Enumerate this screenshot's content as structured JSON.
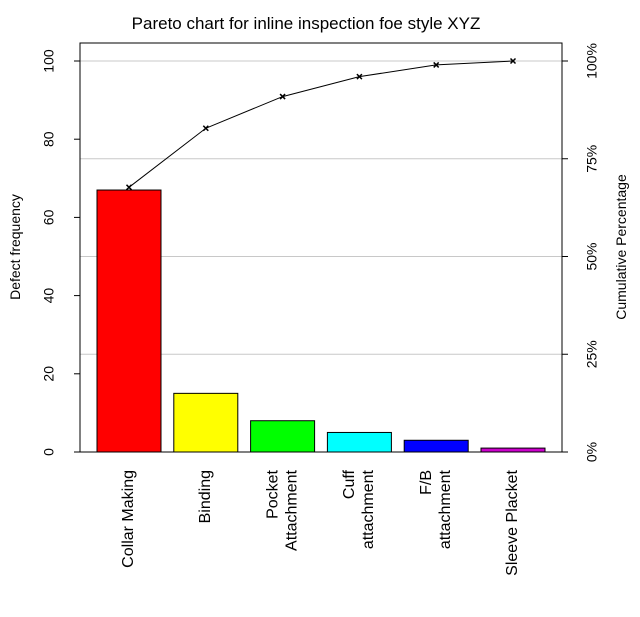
{
  "chart_data": {
    "type": "bar",
    "title": "Pareto chart for inline inspection foe style XYZ",
    "xlabel": "",
    "ylabel": "Defect frequency",
    "ylabel_right": "Cumulative Percentage",
    "ylim": [
      0,
      100
    ],
    "yticks": [
      0,
      20,
      40,
      60,
      80,
      100
    ],
    "y2ticks": [
      "0%",
      "25%",
      "50%",
      "75%",
      "100%"
    ],
    "categories": [
      [
        "Collar Making"
      ],
      [
        "Binding"
      ],
      [
        "Pocket",
        "Attachment"
      ],
      [
        "Cuff",
        "attachment"
      ],
      [
        "F/B",
        "attachment"
      ],
      [
        "Sleeve Placket"
      ]
    ],
    "values": [
      67,
      15,
      8,
      5,
      3,
      1
    ],
    "bar_colors": [
      "#ff0000",
      "#ffff00",
      "#00ff00",
      "#00ffff",
      "#0000ff",
      "#cc00cc"
    ],
    "cumulative_percent": [
      67.7,
      82.8,
      90.9,
      96.0,
      99.0,
      100.0
    ],
    "grid": "horizontal at right-axis ticks",
    "line_color": "#000000"
  }
}
